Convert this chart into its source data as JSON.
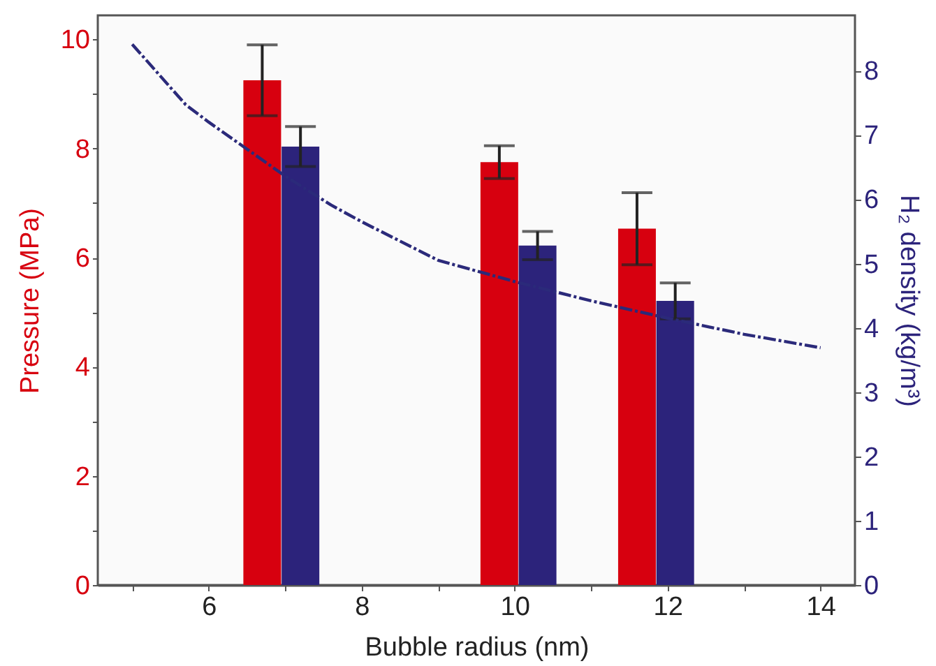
{
  "chart_data": {
    "type": "bar",
    "xlabel": "Bubble radius (nm)",
    "ylabel": "Pressure (MPa)",
    "y2label": "H₂ density (kg/m³)",
    "xlim": [
      4.55,
      14.45
    ],
    "xticks": [
      {
        "value": 5,
        "label": null
      },
      6,
      {
        "value": 7,
        "label": null
      },
      8,
      {
        "value": 9,
        "label": null
      },
      10,
      {
        "value": 11,
        "label": null
      },
      12,
      {
        "value": 13,
        "label": null
      },
      14
    ],
    "ylim": [
      0,
      10.44
    ],
    "yticks": [
      0,
      {
        "value": 1,
        "label": null
      },
      2,
      {
        "value": 3,
        "label": null
      },
      4,
      {
        "value": 5,
        "label": null
      },
      6,
      {
        "value": 7,
        "label": null
      },
      8,
      {
        "value": 9,
        "label": null
      },
      10
    ],
    "y2lim": [
      0,
      8.86
    ],
    "y2ticks": [
      0,
      1,
      2,
      3,
      4,
      5,
      6,
      7,
      8
    ],
    "grid": false,
    "series": [
      {
        "color": "#d7000f",
        "x": [
          6.7,
          9.8,
          11.6
        ],
        "values": [
          9.25,
          7.75,
          6.53
        ],
        "errors": [
          0.65,
          0.3,
          0.66
        ]
      },
      {
        "axis": "y2",
        "color": "#2c237b",
        "x": [
          7.2,
          10.3,
          12.1
        ],
        "values": [
          6.82,
          5.28,
          4.42
        ],
        "errors": [
          0.31,
          0.22,
          0.28
        ]
      },
      {
        "type": "line",
        "axis": "y2",
        "color": "#2b2a7a",
        "line_style": "dashed",
        "x": [
          5,
          5.7,
          6,
          7,
          7.6,
          8,
          9,
          10,
          11,
          12,
          13,
          14
        ],
        "values": [
          8.41,
          7.47,
          7.2,
          6.36,
          5.91,
          5.65,
          5.05,
          4.72,
          4.42,
          4.15,
          3.9,
          3.69
        ]
      }
    ]
  }
}
